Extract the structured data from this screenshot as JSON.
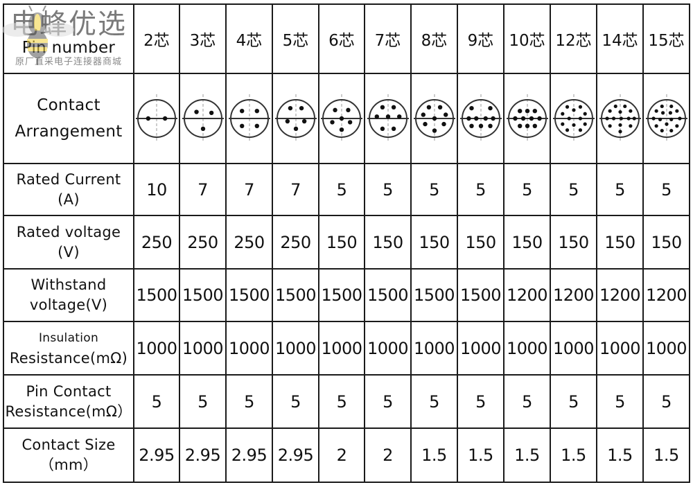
{
  "watermark": {
    "brand": "电蜂优选",
    "tagline": "原厂直采电子连接器商城",
    "logo": "bee-logo"
  },
  "columns": [
    "2芯",
    "3芯",
    "4芯",
    "5芯",
    "6芯",
    "7芯",
    "8芯",
    "9芯",
    "10芯",
    "12芯",
    "14芯",
    "15芯"
  ],
  "header_label": "Pin number",
  "contact_label": [
    "Contact",
    "Arrangement"
  ],
  "pin_counts": [
    2,
    3,
    4,
    5,
    6,
    7,
    8,
    9,
    10,
    12,
    14,
    15
  ],
  "rows": [
    {
      "label": [
        "Rated Current",
        "(A)"
      ],
      "values": [
        "10",
        "7",
        "7",
        "7",
        "5",
        "5",
        "5",
        "5",
        "5",
        "5",
        "5",
        "5"
      ]
    },
    {
      "label": [
        "Rated voltage",
        "(V)"
      ],
      "values": [
        "250",
        "250",
        "250",
        "250",
        "150",
        "150",
        "150",
        "150",
        "150",
        "150",
        "150",
        "150"
      ]
    },
    {
      "label": [
        "Withstand",
        "voltage(V)"
      ],
      "values": [
        "1500",
        "1500",
        "1500",
        "1500",
        "1500",
        "1500",
        "1500",
        "1500",
        "1200",
        "1200",
        "1200",
        "1200"
      ]
    },
    {
      "label": [
        "Insulation",
        "Resistance(mΩ)"
      ],
      "values": [
        "1000",
        "1000",
        "1000",
        "1000",
        "1000",
        "1000",
        "1000",
        "1000",
        "1000",
        "1000",
        "1000",
        "1000"
      ]
    },
    {
      "label": [
        "Pin Contact",
        "Resistance(mΩ）"
      ],
      "values": [
        "5",
        "5",
        "5",
        "5",
        "5",
        "5",
        "5",
        "5",
        "5",
        "5",
        "5",
        "5"
      ]
    },
    {
      "label": [
        "Contact Size",
        "（mm）"
      ],
      "values": [
        "2.95",
        "2.95",
        "2.95",
        "2.95",
        "2",
        "2",
        "1.5",
        "1.5",
        "1.5",
        "1.5",
        "1.5",
        "1.5"
      ]
    }
  ]
}
